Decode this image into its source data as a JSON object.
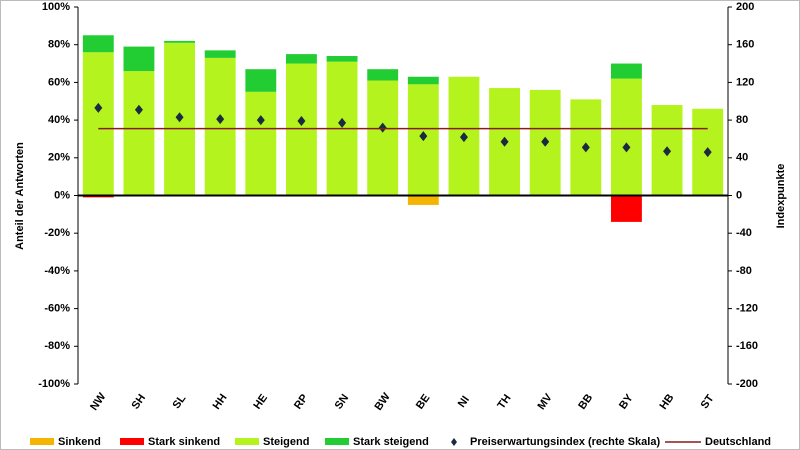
{
  "chart_data": {
    "type": "bar",
    "y_label": "Anteil der Antworten",
    "y2_label": "Indexpunkte",
    "categories": [
      "NW",
      "SH",
      "SL",
      "HH",
      "HE",
      "RP",
      "SN",
      "BW",
      "BE",
      "NI",
      "TH",
      "MV",
      "BB",
      "BY",
      "HB",
      "ST"
    ],
    "series": [
      {
        "name": "Sinkend",
        "type": "bar",
        "color": "#f5b400",
        "values": [
          0,
          0,
          0,
          0,
          0,
          0,
          0,
          0,
          -5,
          0,
          0,
          0,
          0,
          0,
          0,
          0
        ]
      },
      {
        "name": "Stark sinkend",
        "type": "bar",
        "color": "#ff0000",
        "values": [
          -1,
          0,
          0,
          0,
          0,
          0,
          0,
          0,
          0,
          0,
          0,
          0,
          0,
          -14,
          0,
          0
        ]
      },
      {
        "name": "Steigend",
        "type": "bar",
        "color": "#b4f31e",
        "values": [
          76,
          66,
          81,
          73,
          55,
          70,
          71,
          61,
          59,
          63,
          57,
          56,
          51,
          62,
          48,
          46
        ]
      },
      {
        "name": "Stark steigend",
        "type": "bar",
        "color": "#22cc33",
        "values": [
          9,
          13,
          1,
          4,
          12,
          5,
          3,
          6,
          4,
          0,
          0,
          0,
          0,
          8,
          0,
          0
        ]
      },
      {
        "name": "Preiserwartungsindex (rechte Skala)",
        "type": "scatter",
        "axis": "y2",
        "color": "#1a2a40",
        "values": [
          93,
          91,
          83,
          81,
          80,
          79,
          77,
          72,
          63,
          62,
          57,
          57,
          51,
          51,
          47,
          46
        ]
      },
      {
        "name": "Deutschland",
        "type": "hline",
        "axis": "y2",
        "color": "#8b1a1a",
        "value": 71
      }
    ],
    "ylim": [
      -100,
      100
    ],
    "yticks": [
      {
        "value": -100,
        "label": "-100%"
      },
      {
        "value": -80,
        "label": "-80%"
      },
      {
        "value": -60,
        "label": "-60%"
      },
      {
        "value": -40,
        "label": "-40%"
      },
      {
        "value": -20,
        "label": "-20%"
      },
      {
        "value": 0,
        "label": "0%"
      },
      {
        "value": 20,
        "label": "20%"
      },
      {
        "value": 40,
        "label": "40%"
      },
      {
        "value": 60,
        "label": "60%"
      },
      {
        "value": 80,
        "label": "80%"
      },
      {
        "value": 100,
        "label": "100%"
      }
    ],
    "y2lim": [
      -200,
      200
    ],
    "y2ticks": [
      -200,
      -160,
      -120,
      -80,
      -40,
      0,
      40,
      80,
      120,
      160,
      200
    ],
    "legend": "bottom"
  }
}
